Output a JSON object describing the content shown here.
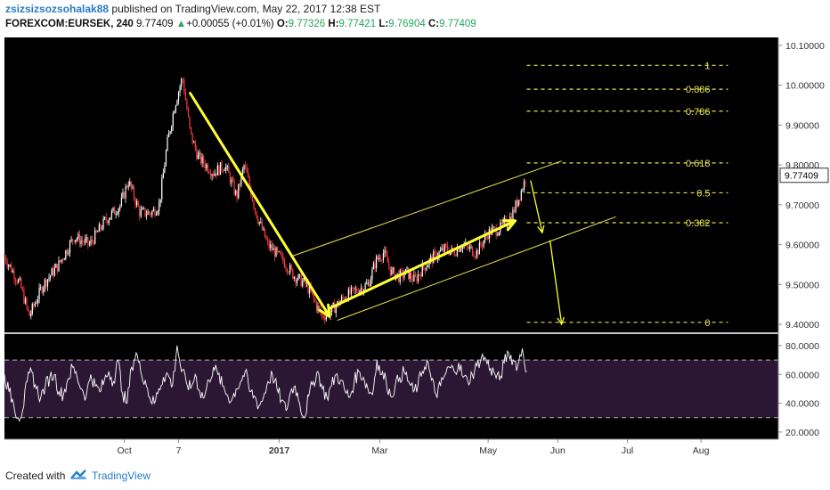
{
  "header": {
    "author": "zsizsizsozsohalak88",
    "published_text": "published on TradingView.com, May 22, 2017 12:38 EST",
    "symbol": "FOREXCOM:EURSEK, 240",
    "last": "9.77409",
    "change_arrow": "▲",
    "change": "+0.00055 (+0.01%)",
    "o_label": "O:",
    "o": "9.77326",
    "h_label": "H:",
    "h": "9.77421",
    "l_label": "L:",
    "l": "9.76904",
    "c_label": "C:",
    "c": "9.77409"
  },
  "footer": {
    "created_with": "Created with",
    "brand": "TradingView",
    "logo_icon": "tradingview-cloud-icon"
  },
  "colors": {
    "background": "#000000",
    "candle_up": "#ffffff",
    "candle_down": "#ff3b3b",
    "annotation": "#ffff33",
    "fib": "#e6e64d",
    "channel": "#e6e64d",
    "rsi_line": "#ffffff",
    "rsi_band": "#2b1733",
    "rsi_dashed": "#bbbbbb"
  },
  "chart_data": [
    {
      "type": "candlestick",
      "symbol": "FOREXCOM:EURSEK",
      "timeframe": "240",
      "yticks": [
        "10.10000",
        "10.00000",
        "9.90000",
        "9.80000",
        "9.70000",
        "9.60000",
        "9.50000",
        "9.40000"
      ],
      "ytick_values": [
        10.1,
        10.0,
        9.9,
        9.8,
        9.7,
        9.6,
        9.5,
        9.4
      ],
      "ylim": [
        9.38,
        10.12
      ],
      "last_price_label": "9.77409",
      "last_price": 9.77409,
      "xlim": [
        0,
        100
      ],
      "xticks": [
        {
          "label": "Oct",
          "t": 15.5
        },
        {
          "label": "7",
          "t": 22.5
        },
        {
          "label": "2017",
          "t": 35.5
        },
        {
          "label": "Mar",
          "t": 48.5
        },
        {
          "label": "May",
          "t": 62.5
        },
        {
          "label": "Jun",
          "t": 71.5
        },
        {
          "label": "Jul",
          "t": 80.5
        },
        {
          "label": "Aug",
          "t": 90.0
        }
      ],
      "price_path": [
        [
          0,
          9.57
        ],
        [
          2,
          9.5
        ],
        [
          3.2,
          9.42
        ],
        [
          5,
          9.5
        ],
        [
          7,
          9.55
        ],
        [
          9,
          9.62
        ],
        [
          11,
          9.6
        ],
        [
          13,
          9.66
        ],
        [
          15,
          9.7
        ],
        [
          16,
          9.76
        ],
        [
          17.5,
          9.68
        ],
        [
          19,
          9.68
        ],
        [
          20,
          9.7
        ],
        [
          21,
          9.85
        ],
        [
          22,
          9.95
        ],
        [
          23,
          10.02
        ],
        [
          24,
          9.88
        ],
        [
          25,
          9.82
        ],
        [
          27,
          9.78
        ],
        [
          28.5,
          9.8
        ],
        [
          30,
          9.72
        ],
        [
          31,
          9.8
        ],
        [
          31.5,
          9.76
        ],
        [
          32.5,
          9.68
        ],
        [
          34,
          9.6
        ],
        [
          36,
          9.56
        ],
        [
          37.5,
          9.52
        ],
        [
          39,
          9.5
        ],
        [
          40,
          9.46
        ],
        [
          41,
          9.42
        ],
        [
          42,
          9.43
        ],
        [
          44,
          9.47
        ],
        [
          45,
          9.48
        ],
        [
          47,
          9.5
        ],
        [
          48,
          9.56
        ],
        [
          49,
          9.58
        ],
        [
          50,
          9.53
        ],
        [
          51,
          9.52
        ],
        [
          52,
          9.53
        ],
        [
          53,
          9.51
        ],
        [
          54,
          9.54
        ],
        [
          55.5,
          9.57
        ],
        [
          57,
          9.59
        ],
        [
          58,
          9.58
        ],
        [
          59,
          9.6
        ],
        [
          61,
          9.58
        ],
        [
          62.5,
          9.63
        ],
        [
          64,
          9.64
        ],
        [
          65.5,
          9.67
        ],
        [
          66.5,
          9.72
        ],
        [
          67.5,
          9.77409
        ]
      ],
      "annotations": {
        "arrows": [
          {
            "from": [
              24,
              9.98
            ],
            "to": [
              42,
              9.42
            ]
          },
          {
            "from": [
              42,
              9.44
            ],
            "to": [
              66,
              9.66
            ]
          },
          {
            "from": [
              68,
              9.76
            ],
            "to": [
              69.5,
              9.63
            ]
          },
          {
            "from": [
              70.5,
              9.61
            ],
            "to": [
              72,
              9.4
            ]
          }
        ],
        "channel": [
          {
            "from": [
              37,
              9.57
            ],
            "to": [
              72,
              9.81
            ]
          },
          {
            "from": [
              43,
              9.41
            ],
            "to": [
              79,
              9.67
            ]
          }
        ]
      },
      "fibonacci": {
        "levels": [
          {
            "label": "1",
            "price": 10.05
          },
          {
            "label": "0.886",
            "price": 9.99
          },
          {
            "label": "0.786",
            "price": 9.935
          },
          {
            "label": "0.618",
            "price": 9.805
          },
          {
            "label": "0.5",
            "price": 9.73
          },
          {
            "label": "0.382",
            "price": 9.655
          },
          {
            "label": "0",
            "price": 9.405
          }
        ],
        "x_start": 67.5,
        "x_end": 93.5
      }
    },
    {
      "type": "line",
      "name": "RSI",
      "yticks": [
        "80.0000",
        "60.0000",
        "40.0000",
        "20.0000"
      ],
      "ytick_values": [
        80,
        60,
        40,
        20
      ],
      "ylim": [
        15,
        88
      ],
      "upper_band": 70,
      "lower_band": 30,
      "values": [
        60,
        48,
        40,
        30,
        35,
        55,
        62,
        50,
        44,
        52,
        58,
        60,
        48,
        46,
        57,
        65,
        58,
        50,
        45,
        60,
        52,
        48,
        56,
        62,
        55,
        70,
        47,
        40,
        65,
        75,
        62,
        56,
        44,
        40,
        50,
        58,
        60,
        52,
        80,
        62,
        55,
        50,
        60,
        48,
        44,
        56,
        65,
        60,
        52,
        46,
        42,
        50,
        55,
        62,
        48,
        45,
        38,
        44,
        55,
        60,
        50,
        42,
        35,
        48,
        52,
        40,
        30,
        45,
        55,
        62,
        50,
        44,
        52,
        60,
        56,
        48,
        44,
        55,
        62,
        58,
        50,
        46,
        70,
        60,
        56,
        45,
        52,
        58,
        62,
        55,
        48,
        52,
        62,
        70,
        56,
        46,
        52,
        60,
        65,
        62,
        68,
        58,
        55,
        60,
        66,
        72,
        70,
        64,
        60,
        56,
        68,
        75,
        70,
        66,
        78,
        62
      ]
    }
  ]
}
